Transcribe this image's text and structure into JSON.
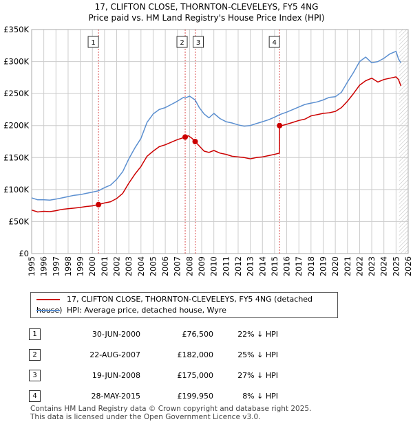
{
  "title_line1": "17, CLIFTON CLOSE, THORNTON-CLEVELEYS, FY5 4NG",
  "title_line2": "Price paid vs. HM Land Registry's House Price Index (HPI)",
  "legend": {
    "property": "17, CLIFTON CLOSE, THORNTON-CLEVELEYS, FY5 4NG (detached house)",
    "hpi": "HPI: Average price, detached house, Wyre"
  },
  "colors": {
    "property": "#cc0000",
    "hpi": "#5b8fd0",
    "grid": "#cccccc",
    "vline": "#cc0000"
  },
  "transactions": [
    {
      "num": "1",
      "date": "30-JUN-2000",
      "price": "£76,500",
      "hpi": "22% ↓ HPI"
    },
    {
      "num": "2",
      "date": "22-AUG-2007",
      "price": "£182,000",
      "hpi": "25% ↓ HPI"
    },
    {
      "num": "3",
      "date": "19-JUN-2008",
      "price": "£175,000",
      "hpi": "27% ↓ HPI"
    },
    {
      "num": "4",
      "date": "28-MAY-2015",
      "price": "£199,950",
      "hpi": "8% ↓ HPI"
    }
  ],
  "footer_line1": "Contains HM Land Registry data © Crown copyright and database right 2025.",
  "footer_line2": "This data is licensed under the Open Government Licence v3.0.",
  "chart_data": {
    "type": "line",
    "title": "17, CLIFTON CLOSE, THORNTON-CLEVELEYS, FY5 4NG",
    "subtitle": "Price paid vs. HM Land Registry's House Price Index (HPI)",
    "xlabel": "",
    "ylabel": "",
    "xlim": [
      1995,
      2026
    ],
    "ylim": [
      0,
      350000
    ],
    "x_ticks": [
      1995,
      1996,
      1997,
      1998,
      1999,
      2000,
      2001,
      2002,
      2003,
      2004,
      2005,
      2006,
      2007,
      2008,
      2009,
      2010,
      2011,
      2012,
      2013,
      2014,
      2015,
      2016,
      2017,
      2018,
      2019,
      2020,
      2021,
      2022,
      2023,
      2024,
      2025,
      2026
    ],
    "y_ticks": [
      0,
      50000,
      100000,
      150000,
      200000,
      250000,
      300000,
      350000
    ],
    "y_tick_labels": [
      "£0",
      "£50K",
      "£100K",
      "£150K",
      "£200K",
      "£250K",
      "£300K",
      "£350K"
    ],
    "grid": true,
    "forecast_from": 2025.25,
    "series": [
      {
        "name": "17, CLIFTON CLOSE, THORNTON-CLEVELEYS, FY5 4NG (detached house)",
        "x": [
          1995.0,
          1995.5,
          1996.0,
          1996.5,
          1997.0,
          1997.5,
          1998.0,
          1998.5,
          1999.0,
          1999.5,
          2000.0,
          2000.5,
          2001.0,
          2001.5,
          2002.0,
          2002.5,
          2003.0,
          2003.5,
          2004.0,
          2004.5,
          2005.0,
          2005.5,
          2006.0,
          2006.5,
          2007.0,
          2007.5,
          2007.64,
          2007.9,
          2008.2,
          2008.46,
          2008.8,
          2009.2,
          2009.6,
          2010.0,
          2010.5,
          2011.0,
          2011.5,
          2012.0,
          2012.5,
          2013.0,
          2013.5,
          2014.0,
          2014.5,
          2015.0,
          2015.4,
          2015.41,
          2015.6,
          2016.0,
          2016.5,
          2017.0,
          2017.5,
          2018.0,
          2018.5,
          2019.0,
          2019.5,
          2020.0,
          2020.5,
          2021.0,
          2021.5,
          2022.0,
          2022.5,
          2023.0,
          2023.5,
          2024.0,
          2024.5,
          2025.0,
          2025.2,
          2025.4
        ],
        "values": [
          68000,
          65000,
          66000,
          65500,
          67000,
          69000,
          70000,
          71000,
          72000,
          73500,
          74500,
          76500,
          79000,
          81000,
          86000,
          94000,
          110000,
          124000,
          136000,
          152000,
          160000,
          167000,
          170000,
          174000,
          178000,
          181000,
          182000,
          184000,
          180000,
          175000,
          168000,
          160000,
          158000,
          161000,
          157000,
          155000,
          152000,
          151000,
          150000,
          148000,
          150000,
          151000,
          153000,
          155000,
          157000,
          199950,
          200000,
          202000,
          205000,
          208000,
          210000,
          215000,
          217000,
          219000,
          220000,
          222000,
          228000,
          238000,
          250000,
          263000,
          270000,
          274000,
          268000,
          272000,
          274000,
          276000,
          272000,
          262000
        ]
      },
      {
        "name": "HPI: Average price, detached house, Wyre",
        "x": [
          1995.0,
          1995.5,
          1996.0,
          1996.5,
          1997.0,
          1997.5,
          1998.0,
          1998.5,
          1999.0,
          1999.5,
          2000.0,
          2000.5,
          2001.0,
          2001.5,
          2002.0,
          2002.5,
          2003.0,
          2003.5,
          2004.0,
          2004.5,
          2005.0,
          2005.5,
          2006.0,
          2006.5,
          2007.0,
          2007.5,
          2007.64,
          2008.0,
          2008.46,
          2008.8,
          2009.2,
          2009.6,
          2010.0,
          2010.5,
          2011.0,
          2011.5,
          2012.0,
          2012.5,
          2013.0,
          2013.5,
          2014.0,
          2014.5,
          2015.0,
          2015.4,
          2016.0,
          2016.5,
          2017.0,
          2017.5,
          2018.0,
          2018.5,
          2019.0,
          2019.5,
          2020.0,
          2020.5,
          2021.0,
          2021.5,
          2022.0,
          2022.5,
          2023.0,
          2023.5,
          2024.0,
          2024.5,
          2025.0,
          2025.2,
          2025.4
        ],
        "values": [
          87000,
          84000,
          84000,
          83500,
          85000,
          87000,
          89000,
          91000,
          92000,
          94000,
          96000,
          98000,
          103000,
          107000,
          116000,
          128000,
          148000,
          165000,
          180000,
          205000,
          218000,
          225000,
          228000,
          233000,
          238000,
          244000,
          243000,
          246000,
          240000,
          228000,
          218000,
          212000,
          219000,
          211000,
          206000,
          204000,
          201000,
          199000,
          200000,
          203000,
          206000,
          209000,
          213000,
          217000,
          221000,
          225000,
          229000,
          233000,
          235000,
          237000,
          240000,
          244000,
          245000,
          252000,
          268000,
          283000,
          300000,
          307000,
          298000,
          300000,
          305000,
          312000,
          316000,
          304000,
          298000
        ]
      }
    ],
    "annotations": [
      {
        "label": "1",
        "x": 2000.5,
        "y": 76500
      },
      {
        "label": "2",
        "x": 2007.64,
        "y": 182000
      },
      {
        "label": "3",
        "x": 2008.46,
        "y": 175000
      },
      {
        "label": "4",
        "x": 2015.41,
        "y": 199950
      }
    ]
  }
}
